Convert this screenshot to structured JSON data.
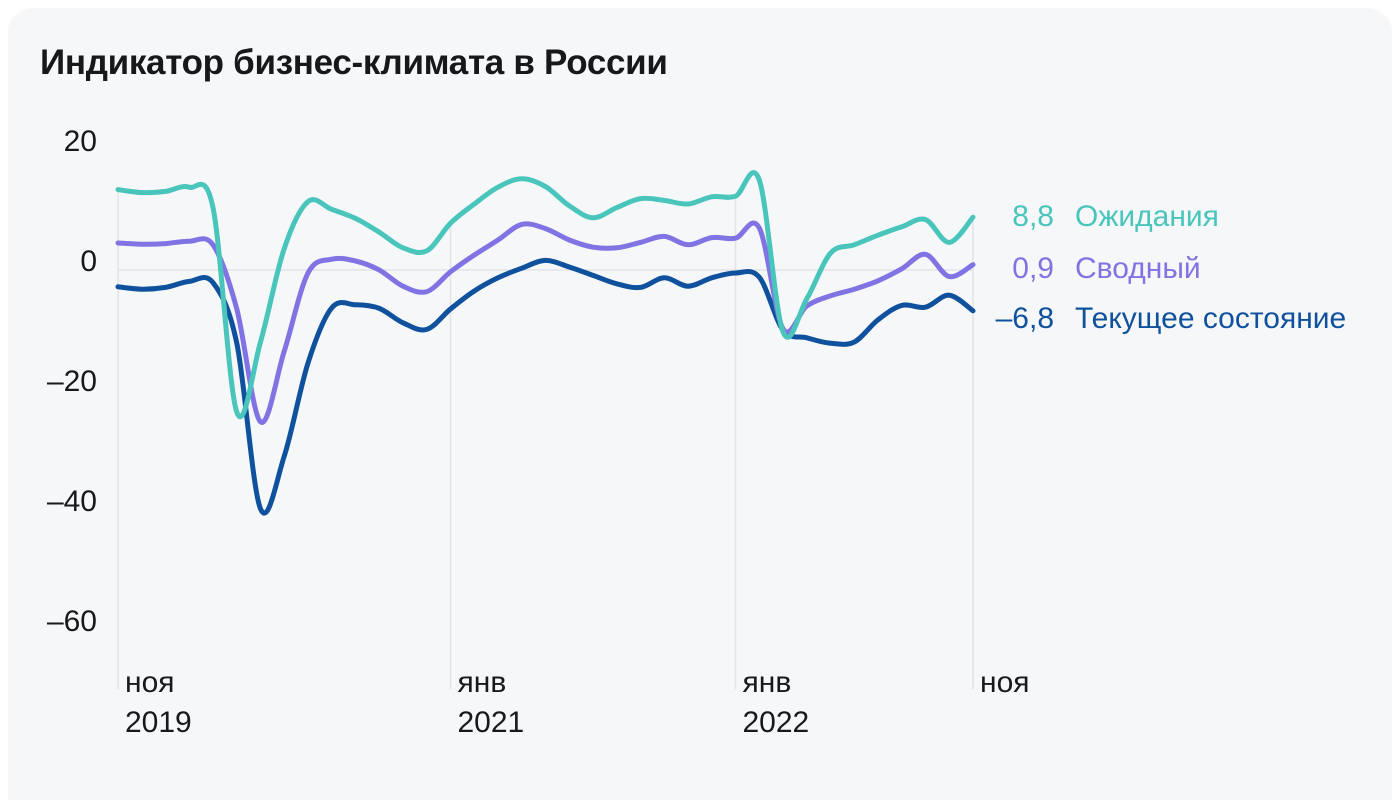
{
  "title": "Индикатор бизнес-климата в России",
  "colors": {
    "page_background": "#ffffff",
    "card_background": "#f6f7f8",
    "grid": "#e2e4e6",
    "text": "#17191c",
    "title_text": "#16181b"
  },
  "chart_data": {
    "type": "line",
    "title": "Индикатор бизнес-климата в России",
    "grid": {
      "zero_line": true,
      "vertical_tick_lines": true
    },
    "legend_position": "right",
    "ylim": [
      -70,
      23
    ],
    "y_ticks": [
      20,
      0,
      -20,
      -40,
      -60
    ],
    "y_tick_labels": [
      "20",
      "0",
      "–20",
      "–40",
      "–60"
    ],
    "x_ticks": [
      {
        "index": 0,
        "month": "ноя",
        "year": "2019"
      },
      {
        "index": 14,
        "month": "янв",
        "year": "2021"
      },
      {
        "index": 26,
        "month": "янв",
        "year": "2022"
      },
      {
        "index": 36,
        "month": "ноя",
        "year": ""
      }
    ],
    "x_months": [
      "2019-11",
      "2019-12",
      "2020-01",
      "2020-02",
      "2020-03",
      "2020-04",
      "2020-05",
      "2020-06",
      "2020-07",
      "2020-08",
      "2020-09",
      "2020-10",
      "2020-11",
      "2020-12",
      "2021-01",
      "2021-02",
      "2021-03",
      "2021-04",
      "2021-05",
      "2021-06",
      "2021-07",
      "2021-08",
      "2021-09",
      "2021-10",
      "2021-11",
      "2021-12",
      "2022-01",
      "2022-02",
      "2022-03",
      "2022-04",
      "2022-05",
      "2022-06",
      "2022-07",
      "2022-08",
      "2022-09",
      "2022-10",
      "2022-11"
    ],
    "series": [
      {
        "id": "ozhidaniya",
        "name": "Ожидания",
        "end_label": "8,8",
        "end_value": 8.8,
        "color": "#49c5bc",
        "values": [
          13.4,
          12.9,
          13.1,
          13.8,
          10.4,
          -23.7,
          -12.0,
          3.6,
          11.4,
          10.1,
          8.6,
          6.3,
          3.7,
          3.2,
          7.8,
          11.0,
          13.8,
          15.2,
          13.9,
          10.7,
          8.7,
          10.4,
          11.9,
          11.6,
          11.0,
          12.2,
          12.3,
          15.0,
          -10.3,
          -4.8,
          2.8,
          4.2,
          5.8,
          7.2,
          8.4,
          4.6,
          8.8
        ]
      },
      {
        "id": "svodnyy",
        "name": "Сводный",
        "end_label": "0,9",
        "end_value": 0.9,
        "color": "#8073e3",
        "values": [
          4.5,
          4.3,
          4.4,
          4.8,
          4.2,
          -6.5,
          -25.3,
          -13.5,
          -0.5,
          1.8,
          1.5,
          0.0,
          -2.7,
          -3.6,
          -0.3,
          2.5,
          5.0,
          7.6,
          6.9,
          5.0,
          3.8,
          3.7,
          4.6,
          5.6,
          4.2,
          5.4,
          5.3,
          7.0,
          -9.8,
          -6.0,
          -4.3,
          -3.2,
          -1.8,
          0.2,
          2.6,
          -1.1,
          0.9
        ]
      },
      {
        "id": "tekushchee-sostoyanie",
        "name": "Текущее состояние",
        "end_label": "–6,8",
        "end_value": -6.8,
        "color": "#10519e",
        "values": [
          -2.8,
          -3.2,
          -2.9,
          -1.9,
          -2.1,
          -12.2,
          -39.8,
          -31.0,
          -15.5,
          -6.3,
          -5.8,
          -6.4,
          -8.8,
          -9.9,
          -6.5,
          -3.5,
          -1.3,
          0.3,
          1.6,
          0.5,
          -0.9,
          -2.3,
          -2.9,
          -1.3,
          -2.7,
          -1.3,
          -0.5,
          -1.2,
          -10.0,
          -11.3,
          -12.2,
          -12.0,
          -8.3,
          -5.9,
          -6.2,
          -4.2,
          -6.8
        ]
      }
    ]
  }
}
